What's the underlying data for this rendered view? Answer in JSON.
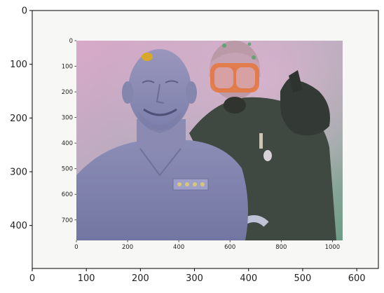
{
  "figure": {
    "outer_axes": {
      "x_ticks": [
        "0",
        "100",
        "200",
        "300",
        "400",
        "500",
        "600"
      ],
      "y_ticks": [
        "0",
        "100",
        "200",
        "300",
        "400"
      ],
      "x_range": [
        0,
        640
      ],
      "y_range": [
        0,
        480
      ]
    },
    "inner_image": {
      "description_icon": "underwater-photo-icon",
      "x_ticks": [
        "0",
        "200",
        "400",
        "600",
        "800",
        "1000"
      ],
      "y_ticks": [
        "0",
        "100",
        "200",
        "300",
        "400",
        "500",
        "600",
        "700"
      ],
      "x_range": [
        0,
        1040
      ],
      "y_range": [
        0,
        780
      ],
      "colors": {
        "water_top": "#d9a9c9",
        "water_mid": "#a9b4b3",
        "water_bottom": "#7aa28e",
        "statue": "#8d8fb6",
        "diver_suit": "#3f4941",
        "mask": "#e6763b"
      }
    }
  }
}
